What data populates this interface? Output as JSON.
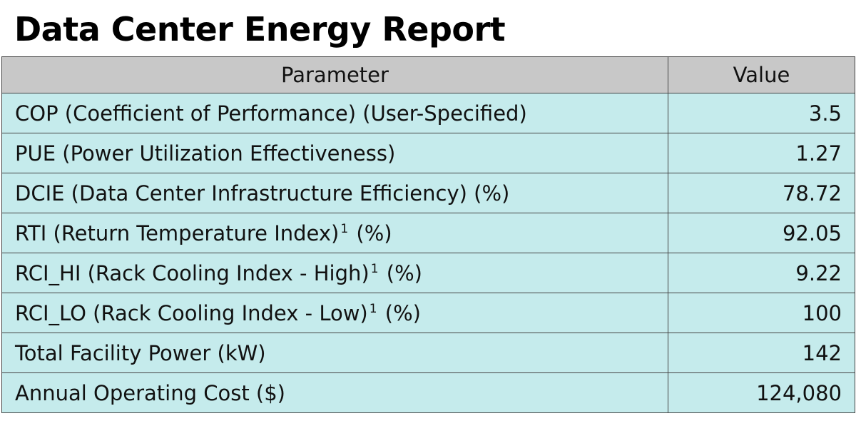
{
  "title": "Data Center Energy Report",
  "table": {
    "headers": [
      "Parameter",
      "Value"
    ],
    "rows": [
      {
        "parameter": "COP (Coefficient of Performance) (User-Specified)",
        "footnote": "",
        "suffix": "",
        "value": "3.5"
      },
      {
        "parameter": "PUE (Power Utilization Effectiveness)",
        "footnote": "",
        "suffix": "",
        "value": "1.27"
      },
      {
        "parameter": "DCIE (Data Center Infrastructure Efficiency) (%)",
        "footnote": "",
        "suffix": "",
        "value": "78.72"
      },
      {
        "parameter": "RTI (Return Temperature Index)",
        "footnote": "1",
        "suffix": "(%)",
        "value": "92.05"
      },
      {
        "parameter": "RCI_HI (Rack Cooling Index - High)",
        "footnote": "1",
        "suffix": "(%)",
        "value": "9.22"
      },
      {
        "parameter": "RCI_LO (Rack Cooling Index - Low)",
        "footnote": "1",
        "suffix": "(%)",
        "value": "100"
      },
      {
        "parameter": "Total Facility Power (kW)",
        "footnote": "",
        "suffix": "",
        "value": "142"
      },
      {
        "parameter": "Annual Operating Cost ($)",
        "footnote": "",
        "suffix": "",
        "value": "124,080"
      }
    ]
  },
  "colors": {
    "header_background": "#c8c8c8",
    "row_background": "#c5ebec",
    "border": "#444444"
  }
}
